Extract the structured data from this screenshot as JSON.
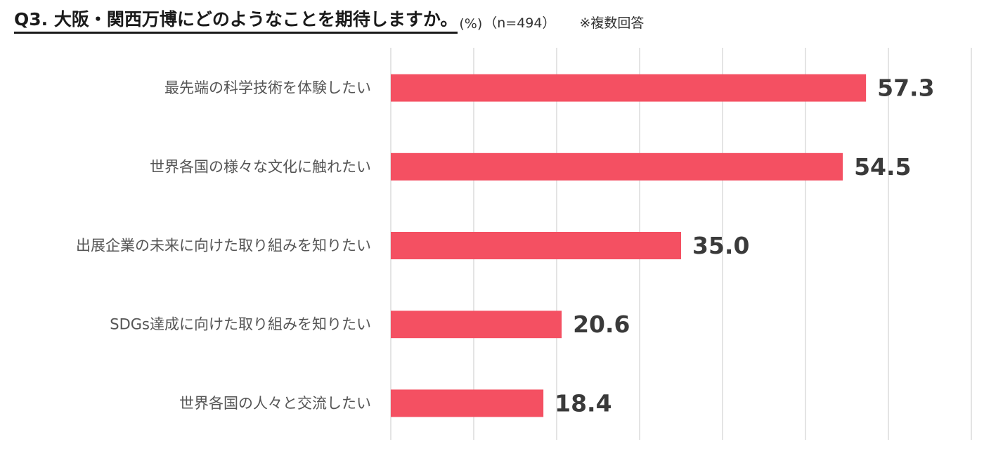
{
  "header": {
    "title": "Q3. 大阪・関西万博にどのようなことを期待しますか。",
    "unit": "(%)",
    "sample": "（n=494）",
    "note": "※複数回答"
  },
  "colors": {
    "bar": "#f45062",
    "grid": "#d9d9d9"
  },
  "chart_data": {
    "type": "bar",
    "orientation": "horizontal",
    "categories": [
      "最先端の科学技術を体験したい",
      "世界各国の様々な文化に触れたい",
      "出展企業の未来に向けた取り組みを知りたい",
      "SDGs達成に向けた取り組みを知りたい",
      "世界各国の人々と交流したい"
    ],
    "values": [
      57.3,
      54.5,
      35.0,
      20.6,
      18.4
    ],
    "value_labels": [
      "57.3",
      "54.5",
      "35.0",
      "20.6",
      "18.4"
    ],
    "xlim": [
      0,
      70
    ],
    "grid": true,
    "legend": "none"
  }
}
